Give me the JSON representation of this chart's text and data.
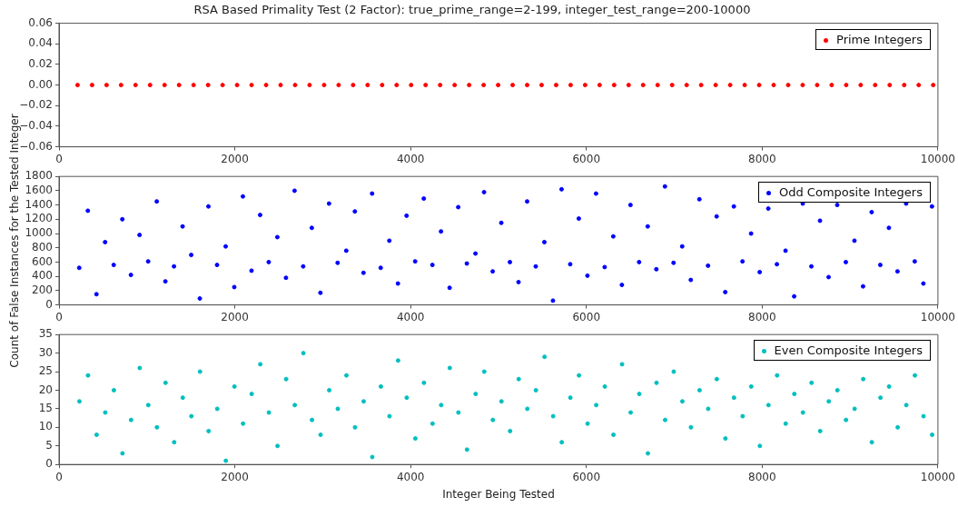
{
  "chart_data": [
    {
      "type": "scatter",
      "title": "RSA Based Primality Test (2 Factor): true_prime_range=2-199, integer_test_range=200-10000",
      "legend": "top right",
      "marker": "circle",
      "grid": false,
      "xlim": [
        0,
        10000
      ],
      "xticks": [
        0,
        2000,
        4000,
        6000,
        8000,
        10000
      ],
      "ylim": [
        -0.06,
        0.06
      ],
      "yticks": [
        {
          "value": -0.06,
          "label": "−0.06"
        },
        {
          "value": -0.04,
          "label": "−0.04"
        },
        {
          "value": -0.02,
          "label": "−0.02"
        },
        {
          "value": 0,
          "label": "0.00"
        },
        {
          "value": 0.02,
          "label": "0.02"
        },
        {
          "value": 0.04,
          "label": "0.04"
        },
        {
          "value": 0.06,
          "label": "0.06"
        }
      ],
      "series": [
        {
          "name": "Prime Integers",
          "color": "#ff0000",
          "x": [
            211,
            376,
            541,
            706,
            871,
            1036,
            1201,
            1366,
            1531,
            1696,
            1861,
            2026,
            2191,
            2356,
            2521,
            2686,
            2851,
            3016,
            3181,
            3346,
            3511,
            3676,
            3841,
            4006,
            4171,
            4336,
            4501,
            4666,
            4831,
            4996,
            5161,
            5326,
            5491,
            5656,
            5821,
            5986,
            6151,
            6316,
            6481,
            6646,
            6811,
            6976,
            7141,
            7306,
            7471,
            7636,
            7801,
            7966,
            8131,
            8296,
            8461,
            8626,
            8791,
            8956,
            9121,
            9286,
            9451,
            9616,
            9781,
            9946
          ],
          "values": [
            0,
            0,
            0,
            0,
            0,
            0,
            0,
            0,
            0,
            0,
            0,
            0,
            0,
            0,
            0,
            0,
            0,
            0,
            0,
            0,
            0,
            0,
            0,
            0,
            0,
            0,
            0,
            0,
            0,
            0,
            0,
            0,
            0,
            0,
            0,
            0,
            0,
            0,
            0,
            0,
            0,
            0,
            0,
            0,
            0,
            0,
            0,
            0,
            0,
            0,
            0,
            0,
            0,
            0,
            0,
            0,
            0,
            0,
            0,
            0
          ]
        }
      ]
    },
    {
      "type": "scatter",
      "ylabel": "Count of False Instances for the Tested Integer",
      "legend": "top right",
      "marker": "circle",
      "grid": false,
      "xlim": [
        0,
        10000
      ],
      "xticks": [
        0,
        2000,
        4000,
        6000,
        8000,
        10000
      ],
      "ylim": [
        0,
        1800
      ],
      "yticks": [
        0,
        200,
        400,
        600,
        800,
        1000,
        1200,
        1400,
        1600,
        1800
      ],
      "series": [
        {
          "name": "Odd Composite Integers",
          "color": "#0000ff",
          "x": [
            230,
            328,
            426,
            524,
            622,
            720,
            818,
            916,
            1014,
            1112,
            1210,
            1308,
            1406,
            1504,
            1602,
            1700,
            1798,
            1896,
            1994,
            2092,
            2190,
            2288,
            2386,
            2484,
            2582,
            2680,
            2778,
            2876,
            2974,
            3072,
            3170,
            3268,
            3366,
            3464,
            3562,
            3660,
            3758,
            3856,
            3954,
            4052,
            4150,
            4248,
            4346,
            4444,
            4542,
            4640,
            4738,
            4836,
            4934,
            5032,
            5130,
            5228,
            5326,
            5424,
            5522,
            5620,
            5718,
            5816,
            5914,
            6012,
            6110,
            6208,
            6306,
            6404,
            6502,
            6600,
            6698,
            6796,
            6894,
            6992,
            7090,
            7188,
            7286,
            7384,
            7482,
            7580,
            7678,
            7776,
            7874,
            7972,
            8070,
            8168,
            8266,
            8364,
            8462,
            8560,
            8658,
            8756,
            8854,
            8952,
            9050,
            9148,
            9246,
            9344,
            9442,
            9540,
            9638,
            9736,
            9834,
            9932
          ],
          "values": [
            520,
            1320,
            150,
            880,
            560,
            1200,
            420,
            980,
            610,
            1450,
            330,
            540,
            1100,
            700,
            90,
            1380,
            560,
            820,
            250,
            1520,
            480,
            1260,
            600,
            950,
            380,
            1600,
            540,
            1080,
            170,
            1420,
            590,
            760,
            1310,
            450,
            1560,
            520,
            900,
            300,
            1250,
            610,
            1490,
            560,
            1030,
            240,
            1370,
            580,
            720,
            1580,
            470,
            1150,
            600,
            320,
            1450,
            540,
            880,
            60,
            1620,
            570,
            1210,
            410,
            1560,
            530,
            960,
            280,
            1400,
            600,
            1100,
            500,
            1660,
            590,
            820,
            350,
            1480,
            550,
            1240,
            180,
            1380,
            610,
            1000,
            460,
            1350,
            570,
            760,
            120,
            1420,
            540,
            1180,
            390,
            1400,
            600,
            900,
            260,
            1300,
            560,
            1080,
            470,
            1420,
            610,
            300,
            1380
          ]
        }
      ]
    },
    {
      "type": "scatter",
      "xlabel": "Integer Being Tested",
      "legend": "top right",
      "marker": "circle",
      "grid": false,
      "xlim": [
        0,
        10000
      ],
      "xticks": [
        0,
        2000,
        4000,
        6000,
        8000,
        10000
      ],
      "ylim": [
        0,
        35
      ],
      "yticks": [
        0,
        5,
        10,
        15,
        20,
        25,
        30,
        35
      ],
      "series": [
        {
          "name": "Even Composite Integers",
          "color": "#00bfbf",
          "x": [
            232,
            330,
            428,
            526,
            624,
            722,
            820,
            918,
            1016,
            1114,
            1212,
            1310,
            1408,
            1506,
            1604,
            1702,
            1800,
            1898,
            1996,
            2094,
            2192,
            2290,
            2388,
            2486,
            2584,
            2682,
            2780,
            2878,
            2976,
            3074,
            3172,
            3270,
            3368,
            3466,
            3564,
            3662,
            3760,
            3858,
            3956,
            4054,
            4152,
            4250,
            4348,
            4446,
            4544,
            4642,
            4740,
            4838,
            4936,
            5034,
            5132,
            5230,
            5328,
            5426,
            5524,
            5622,
            5720,
            5818,
            5916,
            6014,
            6112,
            6210,
            6308,
            6406,
            6504,
            6602,
            6700,
            6798,
            6896,
            6994,
            7092,
            7190,
            7288,
            7386,
            7484,
            7582,
            7680,
            7778,
            7876,
            7974,
            8072,
            8170,
            8268,
            8366,
            8464,
            8562,
            8660,
            8758,
            8856,
            8954,
            9052,
            9150,
            9248,
            9346,
            9444,
            9542,
            9640,
            9738,
            9836,
            9934
          ],
          "values": [
            17,
            24,
            8,
            14,
            20,
            3,
            12,
            26,
            16,
            10,
            22,
            6,
            18,
            13,
            25,
            9,
            15,
            1,
            21,
            11,
            19,
            27,
            14,
            5,
            23,
            16,
            30,
            12,
            8,
            20,
            15,
            24,
            10,
            17,
            2,
            21,
            13,
            28,
            18,
            7,
            22,
            11,
            16,
            26,
            14,
            4,
            19,
            25,
            12,
            17,
            9,
            23,
            15,
            20,
            29,
            13,
            6,
            18,
            24,
            11,
            16,
            21,
            8,
            27,
            14,
            19,
            3,
            22,
            12,
            25,
            17,
            10,
            20,
            15,
            23,
            7,
            18,
            13,
            21,
            5,
            16,
            24,
            11,
            19,
            14,
            22,
            9,
            17,
            20,
            12,
            15,
            23,
            6,
            18,
            21,
            10,
            16,
            24,
            13,
            8
          ]
        }
      ]
    }
  ]
}
